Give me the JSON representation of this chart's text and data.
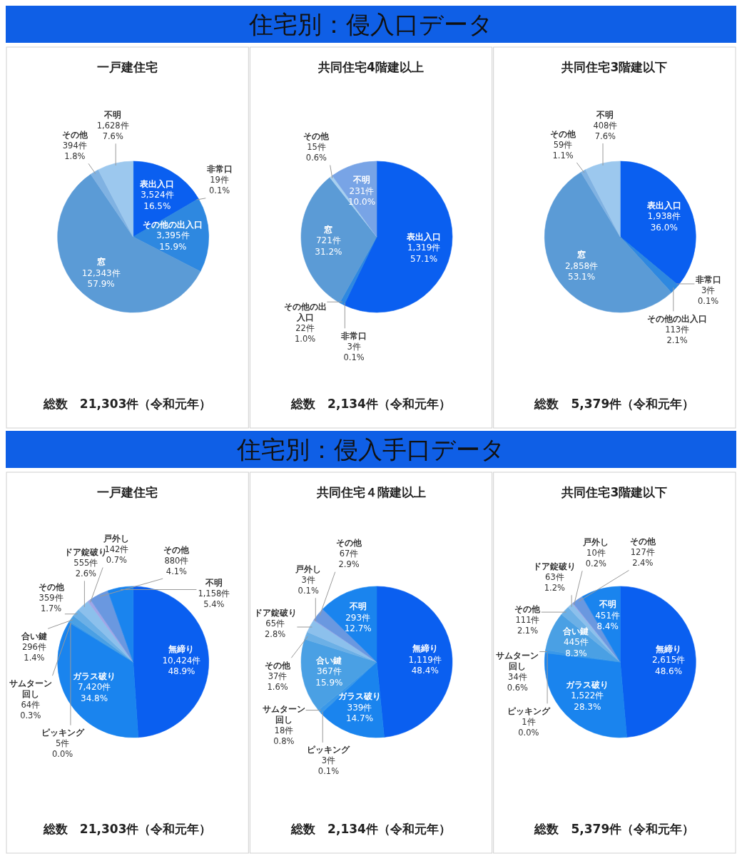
{
  "chart_data": [
    {
      "type": "other",
      "title": "住宅別：侵入口データ"
    },
    {
      "type": "pie",
      "title": "一戸建住宅",
      "categories": [
        "表出入口",
        "非常口",
        "その他の出入口",
        "窓",
        "その他",
        "不明"
      ],
      "values": [
        3524,
        19,
        3395,
        12343,
        394,
        1628
      ],
      "colors": [
        "#0a5ff0",
        "#1f74e6",
        "#2e88e0",
        "#5b9bd6",
        "#80b2e2",
        "#9cc8ee"
      ],
      "value_labels": [
        "3,524件\n16.5%",
        "19件\n0.1%",
        "3,395件\n15.9%",
        "12,343件\n57.9%",
        "394件\n1.8%",
        "1,628件\n7.6%"
      ],
      "annotations": [
        "総数　21,303件（令和元年）"
      ]
    },
    {
      "type": "pie",
      "title": "共同住宅4階建以上",
      "categories": [
        "表出入口",
        "非常口",
        "その他の出入口",
        "窓",
        "その他",
        "不明"
      ],
      "values": [
        1319,
        3,
        22,
        721,
        15,
        231
      ],
      "colors": [
        "#0a5ff0",
        "#1f74e6",
        "#2e88e0",
        "#5b9bd6",
        "#a8d0f0",
        "#78a4e6"
      ],
      "value_labels": [
        "1,319件\n57.1%",
        "3件\n0.1%",
        "22件\n1.0%",
        "721件\n31.2%",
        "15件\n0.6%",
        "231件\n10.0%"
      ],
      "annotations": [
        "総数　2,134件（令和元年）"
      ]
    },
    {
      "type": "pie",
      "title": "共同住宅3階建以下",
      "categories": [
        "表出入口",
        "非常口",
        "その他の出入口",
        "窓",
        "その他",
        "不明"
      ],
      "values": [
        1938,
        3,
        113,
        2858,
        59,
        408
      ],
      "colors": [
        "#0a5ff0",
        "#1f74e6",
        "#2e88e0",
        "#5b9bd6",
        "#80b2e2",
        "#9cc8ee"
      ],
      "value_labels": [
        "1,938件\n36.0%",
        "3件\n0.1%",
        "113件\n2.1%",
        "2,858件\n53.1%",
        "59件\n1.1%",
        "408件\n7.6%"
      ],
      "annotations": [
        "総数　5,379件（令和元年）"
      ]
    },
    {
      "type": "other",
      "title": "住宅別：侵入手口データ"
    },
    {
      "type": "pie",
      "title": "一戸建住宅",
      "categories": [
        "無締り",
        "ガラス破り",
        "ピッキング",
        "サムターン回し",
        "合い鍵",
        "その他",
        "ドア錠破り",
        "戸外し",
        "その他",
        "不明"
      ],
      "values": [
        10424,
        7420,
        5,
        64,
        296,
        359,
        555,
        142,
        880,
        1158
      ],
      "colors": [
        "#0a5ff0",
        "#1a84ee",
        "#2a90ea",
        "#3a98e8",
        "#4aa0e4",
        "#6cb0e6",
        "#8cc0ec",
        "#a0a6e6",
        "#6a98e0",
        "#1a84ee"
      ],
      "value_labels": [
        "10,424件\n48.9%",
        "7,420件\n34.8%",
        "5件\n0.0%",
        "64件\n0.3%",
        "296件\n1.4%",
        "359件\n1.7%",
        "555件\n2.6%",
        "142件\n0.7%",
        "880件\n4.1%",
        "1,158件\n5.4%"
      ],
      "annotations": [
        "総数　21,303件（令和元年）"
      ]
    },
    {
      "type": "pie",
      "title": "共同住宅４階建以上",
      "categories": [
        "無締り",
        "ガラス破り",
        "ピッキング",
        "サムターン回し",
        "合い鍵",
        "その他",
        "ドア錠破り",
        "戸外し",
        "その他",
        "不明"
      ],
      "values": [
        1119,
        339,
        3,
        18,
        367,
        37,
        65,
        3,
        67,
        293
      ],
      "colors": [
        "#0a5ff0",
        "#1a84ee",
        "#2a90ea",
        "#3a98e8",
        "#4aa0e4",
        "#6cb0e6",
        "#8cc0ec",
        "#a0a6e6",
        "#6a98e0",
        "#1a84ee"
      ],
      "value_labels": [
        "1,119件\n48.4%",
        "339件\n14.7%",
        "3件\n0.1%",
        "18件\n0.8%",
        "367件\n15.9%",
        "37件\n1.6%",
        "65件\n2.8%",
        "3件\n0.1%",
        "67件\n2.9%",
        "293件\n12.7%"
      ],
      "annotations": [
        "総数　2,134件（令和元年）"
      ]
    },
    {
      "type": "pie",
      "title": "共同住宅3階建以下",
      "categories": [
        "無締り",
        "ガラス破り",
        "ピッキング",
        "サムターン回し",
        "合い鍵",
        "その他",
        "ドア錠破り",
        "戸外し",
        "その他",
        "不明"
      ],
      "values": [
        2615,
        1522,
        1,
        34,
        445,
        111,
        63,
        10,
        127,
        451
      ],
      "colors": [
        "#0a5ff0",
        "#1a84ee",
        "#2a90ea",
        "#3a98e8",
        "#4aa0e4",
        "#6cb0e6",
        "#8cc0ec",
        "#a0a6e6",
        "#6a98e0",
        "#1a84ee"
      ],
      "value_labels": [
        "2,615件\n48.6%",
        "1,522件\n28.3%",
        "1件\n0.0%",
        "34件\n0.6%",
        "445件\n8.3%",
        "111件\n2.1%",
        "63件\n1.2%",
        "10件\n0.2%",
        "127件\n2.4%",
        "451件\n8.4%"
      ],
      "annotations": [
        "総数　5,379件（令和元年）"
      ]
    }
  ]
}
